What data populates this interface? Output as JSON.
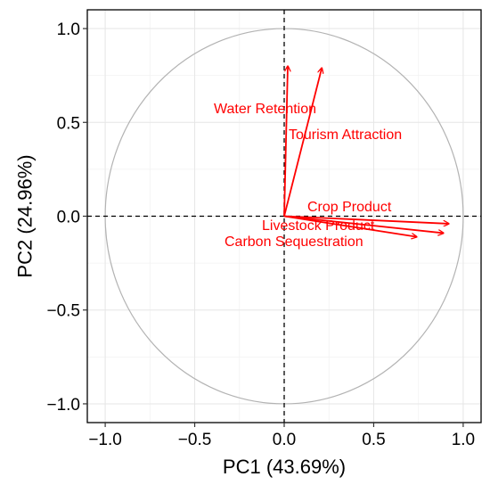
{
  "chart_data": {
    "type": "pca-correlation-circle",
    "xlabel": "PC1 (43.69%)",
    "ylabel": "PC2 (24.96%)",
    "xlim": [
      -1.1,
      1.1
    ],
    "ylim": [
      -1.1,
      1.1
    ],
    "x_ticks": [
      {
        "value": -1.0,
        "label": "−1.0"
      },
      {
        "value": -0.5,
        "label": "−0.5"
      },
      {
        "value": 0.0,
        "label": "0.0"
      },
      {
        "value": 0.5,
        "label": "0.5"
      },
      {
        "value": 1.0,
        "label": "1.0"
      }
    ],
    "y_ticks": [
      {
        "value": -1.0,
        "label": "−1.0"
      },
      {
        "value": -0.5,
        "label": "−0.5"
      },
      {
        "value": 0.0,
        "label": "0.0"
      },
      {
        "value": 0.5,
        "label": "0.5"
      },
      {
        "value": 1.0,
        "label": "1.0"
      }
    ],
    "grid": true,
    "unit_circle": true,
    "zero_lines": "dashed",
    "variables": [
      {
        "name": "Water Retention",
        "x": 0.02,
        "y": 0.8
      },
      {
        "name": "Tourism Attraction",
        "x": 0.21,
        "y": 0.79
      },
      {
        "name": "Crop Product",
        "x": 0.92,
        "y": -0.04
      },
      {
        "name": "Livestock Product",
        "x": 0.89,
        "y": -0.09
      },
      {
        "name": "Carbon Sequestration",
        "x": 0.74,
        "y": -0.11
      }
    ],
    "colors": {
      "arrow": "#ff0000",
      "label": "#ff0000",
      "circle": "#b3b3b3",
      "grid": "#e6e6e6",
      "border": "#000000"
    }
  }
}
